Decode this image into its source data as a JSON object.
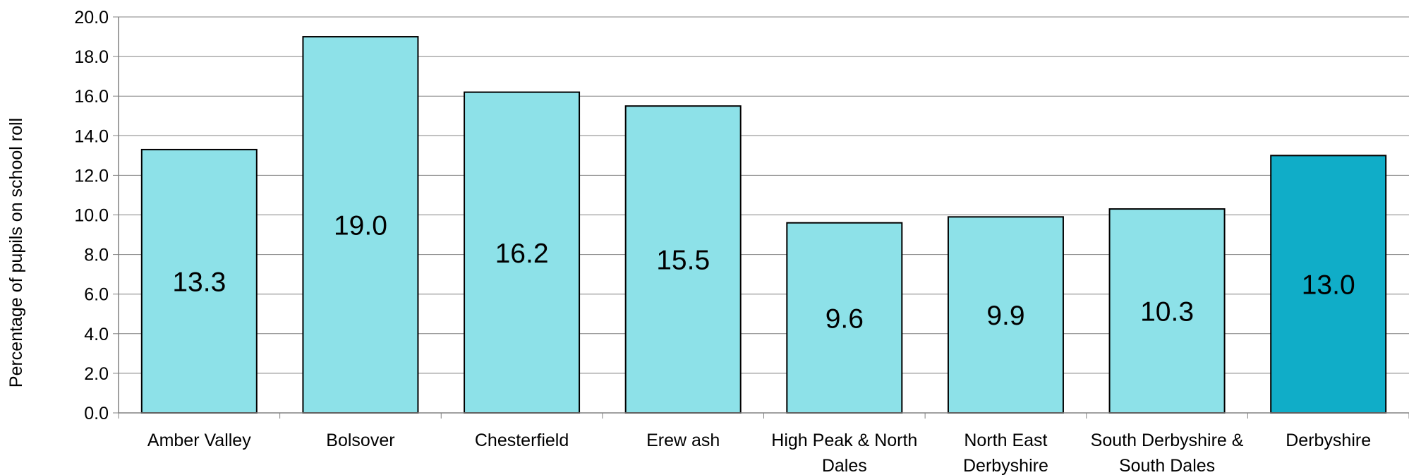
{
  "chart_data": {
    "type": "bar",
    "title": "",
    "xlabel": "",
    "ylabel": "Percentage of pupils on school roll",
    "ylim": [
      0,
      20
    ],
    "ytick_step": 2,
    "ytick_labels": [
      "0.0",
      "2.0",
      "4.0",
      "6.0",
      "8.0",
      "10.0",
      "12.0",
      "14.0",
      "16.0",
      "18.0",
      "20.0"
    ],
    "grid": true,
    "categories": [
      "Amber Valley",
      "Bolsover",
      "Chesterfield",
      "Erew ash",
      "High Peak & North Dales",
      "North East Derbyshire",
      "South Derbyshire & South Dales",
      "Derbyshire"
    ],
    "values": [
      13.3,
      19.0,
      16.2,
      15.5,
      9.6,
      9.9,
      10.3,
      13.0
    ],
    "data_labels": [
      "13.3",
      "19.0",
      "16.2",
      "15.5",
      "9.6",
      "9.9",
      "10.3",
      "13.0"
    ],
    "colors": {
      "bar": "#8de1e8",
      "highlight_bar": "#10adc8",
      "bar_outline": "#000000",
      "gridline": "#808080",
      "axis": "#808080"
    },
    "highlight_index": 7
  }
}
